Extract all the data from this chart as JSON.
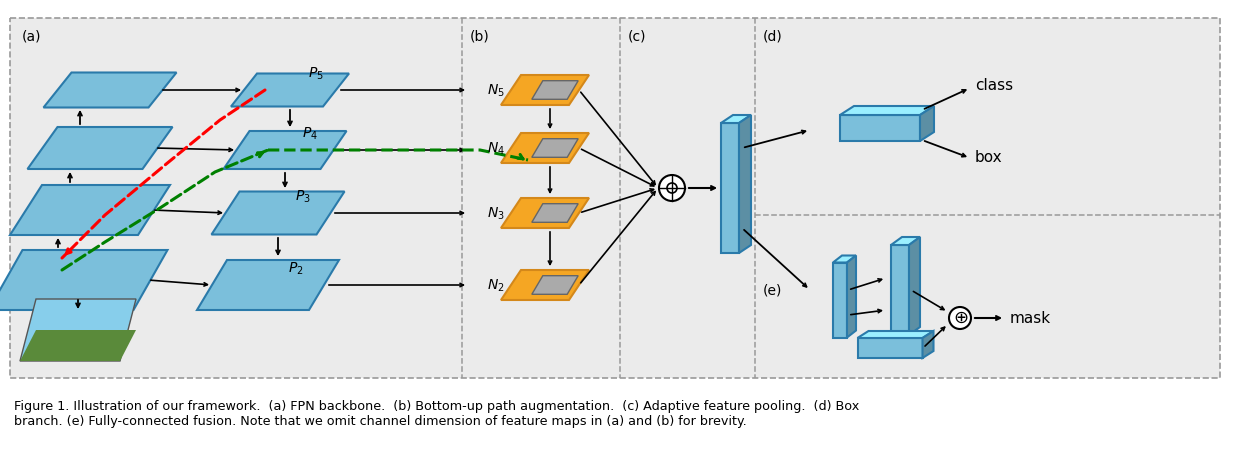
{
  "bg_color": "#ebebeb",
  "white": "#ffffff",
  "blue_fill": "#7bbfdb",
  "blue_edge": "#2a7aaa",
  "blue_fill2": "#6ab0cc",
  "orange_fill": "#f5a623",
  "orange_edge": "#d4881a",
  "gray_fill": "#aaaaaa",
  "gray_edge": "#666666",
  "dark_blue_fill": "#5a9ab5",
  "caption": "Figure 1. Illustration of our framework.  (a) FPN backbone.  (b) Bottom-up path augmentation.  (c) Adaptive feature pooling.  (d) Box\nbranch. (e) Fully-connected fusion. Note that we omit channel dimension of feature maps in (a) and (b) for brevity."
}
